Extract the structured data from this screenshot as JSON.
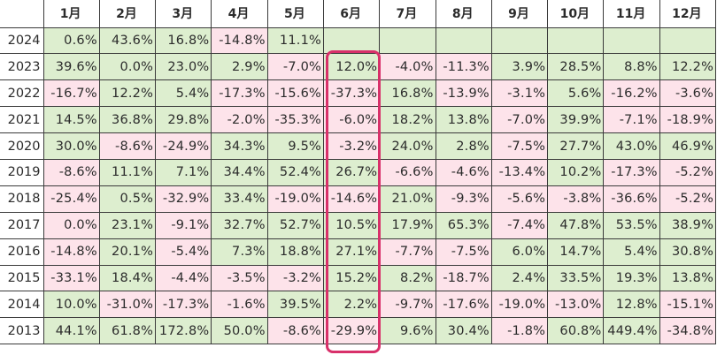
{
  "table": {
    "corner_label": "",
    "columns": [
      "1月",
      "2月",
      "3月",
      "4月",
      "5月",
      "6月",
      "7月",
      "8月",
      "9月",
      "10月",
      "11月",
      "12月"
    ],
    "rows": [
      {
        "year": "2024",
        "cells": [
          {
            "v": "0.6%",
            "s": "pos"
          },
          {
            "v": "43.6%",
            "s": "pos"
          },
          {
            "v": "16.8%",
            "s": "pos"
          },
          {
            "v": "-14.8%",
            "s": "neg"
          },
          {
            "v": "11.1%",
            "s": "pos"
          },
          {
            "v": "",
            "s": "empty"
          },
          {
            "v": "",
            "s": "empty"
          },
          {
            "v": "",
            "s": "empty"
          },
          {
            "v": "",
            "s": "empty"
          },
          {
            "v": "",
            "s": "empty"
          },
          {
            "v": "",
            "s": "empty"
          },
          {
            "v": "",
            "s": "empty"
          }
        ]
      },
      {
        "year": "2023",
        "cells": [
          {
            "v": "39.6%",
            "s": "pos"
          },
          {
            "v": "0.0%",
            "s": "pos"
          },
          {
            "v": "23.0%",
            "s": "pos"
          },
          {
            "v": "2.9%",
            "s": "pos"
          },
          {
            "v": "-7.0%",
            "s": "neg"
          },
          {
            "v": "12.0%",
            "s": "pos"
          },
          {
            "v": "-4.0%",
            "s": "neg"
          },
          {
            "v": "-11.3%",
            "s": "neg"
          },
          {
            "v": "3.9%",
            "s": "pos"
          },
          {
            "v": "28.5%",
            "s": "pos"
          },
          {
            "v": "8.8%",
            "s": "pos"
          },
          {
            "v": "12.2%",
            "s": "pos"
          }
        ]
      },
      {
        "year": "2022",
        "cells": [
          {
            "v": "-16.7%",
            "s": "neg"
          },
          {
            "v": "12.2%",
            "s": "pos"
          },
          {
            "v": "5.4%",
            "s": "pos"
          },
          {
            "v": "-17.3%",
            "s": "neg"
          },
          {
            "v": "-15.6%",
            "s": "neg"
          },
          {
            "v": "-37.3%",
            "s": "neg"
          },
          {
            "v": "16.8%",
            "s": "pos"
          },
          {
            "v": "-13.9%",
            "s": "neg"
          },
          {
            "v": "-3.1%",
            "s": "neg"
          },
          {
            "v": "5.6%",
            "s": "pos"
          },
          {
            "v": "-16.2%",
            "s": "neg"
          },
          {
            "v": "-3.6%",
            "s": "neg"
          }
        ]
      },
      {
        "year": "2021",
        "cells": [
          {
            "v": "14.5%",
            "s": "pos"
          },
          {
            "v": "36.8%",
            "s": "pos"
          },
          {
            "v": "29.8%",
            "s": "pos"
          },
          {
            "v": "-2.0%",
            "s": "neg"
          },
          {
            "v": "-35.3%",
            "s": "neg"
          },
          {
            "v": "-6.0%",
            "s": "neg"
          },
          {
            "v": "18.2%",
            "s": "pos"
          },
          {
            "v": "13.8%",
            "s": "pos"
          },
          {
            "v": "-7.0%",
            "s": "neg"
          },
          {
            "v": "39.9%",
            "s": "pos"
          },
          {
            "v": "-7.1%",
            "s": "neg"
          },
          {
            "v": "-18.9%",
            "s": "neg"
          }
        ]
      },
      {
        "year": "2020",
        "cells": [
          {
            "v": "30.0%",
            "s": "pos"
          },
          {
            "v": "-8.6%",
            "s": "neg"
          },
          {
            "v": "-24.9%",
            "s": "neg"
          },
          {
            "v": "34.3%",
            "s": "pos"
          },
          {
            "v": "9.5%",
            "s": "pos"
          },
          {
            "v": "-3.2%",
            "s": "neg"
          },
          {
            "v": "24.0%",
            "s": "pos"
          },
          {
            "v": "2.8%",
            "s": "pos"
          },
          {
            "v": "-7.5%",
            "s": "neg"
          },
          {
            "v": "27.7%",
            "s": "pos"
          },
          {
            "v": "43.0%",
            "s": "pos"
          },
          {
            "v": "46.9%",
            "s": "pos"
          }
        ]
      },
      {
        "year": "2019",
        "cells": [
          {
            "v": "-8.6%",
            "s": "neg"
          },
          {
            "v": "11.1%",
            "s": "pos"
          },
          {
            "v": "7.1%",
            "s": "pos"
          },
          {
            "v": "34.4%",
            "s": "pos"
          },
          {
            "v": "52.4%",
            "s": "pos"
          },
          {
            "v": "26.7%",
            "s": "pos"
          },
          {
            "v": "-6.6%",
            "s": "neg"
          },
          {
            "v": "-4.6%",
            "s": "neg"
          },
          {
            "v": "-13.4%",
            "s": "neg"
          },
          {
            "v": "10.2%",
            "s": "pos"
          },
          {
            "v": "-17.3%",
            "s": "neg"
          },
          {
            "v": "-5.2%",
            "s": "neg"
          }
        ]
      },
      {
        "year": "2018",
        "cells": [
          {
            "v": "-25.4%",
            "s": "neg"
          },
          {
            "v": "0.5%",
            "s": "pos"
          },
          {
            "v": "-32.9%",
            "s": "neg"
          },
          {
            "v": "33.4%",
            "s": "pos"
          },
          {
            "v": "-19.0%",
            "s": "neg"
          },
          {
            "v": "-14.6%",
            "s": "neg"
          },
          {
            "v": "21.0%",
            "s": "pos"
          },
          {
            "v": "-9.3%",
            "s": "neg"
          },
          {
            "v": "-5.6%",
            "s": "neg"
          },
          {
            "v": "-3.8%",
            "s": "neg"
          },
          {
            "v": "-36.6%",
            "s": "neg"
          },
          {
            "v": "-5.2%",
            "s": "neg"
          }
        ]
      },
      {
        "year": "2017",
        "cells": [
          {
            "v": "0.0%",
            "s": "neg"
          },
          {
            "v": "23.1%",
            "s": "pos"
          },
          {
            "v": "-9.1%",
            "s": "neg"
          },
          {
            "v": "32.7%",
            "s": "pos"
          },
          {
            "v": "52.7%",
            "s": "pos"
          },
          {
            "v": "10.5%",
            "s": "pos"
          },
          {
            "v": "17.9%",
            "s": "pos"
          },
          {
            "v": "65.3%",
            "s": "pos"
          },
          {
            "v": "-7.4%",
            "s": "neg"
          },
          {
            "v": "47.8%",
            "s": "pos"
          },
          {
            "v": "53.5%",
            "s": "pos"
          },
          {
            "v": "38.9%",
            "s": "pos"
          }
        ]
      },
      {
        "year": "2016",
        "cells": [
          {
            "v": "-14.8%",
            "s": "neg"
          },
          {
            "v": "20.1%",
            "s": "pos"
          },
          {
            "v": "-5.4%",
            "s": "neg"
          },
          {
            "v": "7.3%",
            "s": "pos"
          },
          {
            "v": "18.8%",
            "s": "pos"
          },
          {
            "v": "27.1%",
            "s": "pos"
          },
          {
            "v": "-7.7%",
            "s": "neg"
          },
          {
            "v": "-7.5%",
            "s": "neg"
          },
          {
            "v": "6.0%",
            "s": "pos"
          },
          {
            "v": "14.7%",
            "s": "pos"
          },
          {
            "v": "5.4%",
            "s": "pos"
          },
          {
            "v": "30.8%",
            "s": "pos"
          }
        ]
      },
      {
        "year": "2015",
        "cells": [
          {
            "v": "-33.1%",
            "s": "neg"
          },
          {
            "v": "18.4%",
            "s": "pos"
          },
          {
            "v": "-4.4%",
            "s": "neg"
          },
          {
            "v": "-3.5%",
            "s": "neg"
          },
          {
            "v": "-3.2%",
            "s": "neg"
          },
          {
            "v": "15.2%",
            "s": "pos"
          },
          {
            "v": "8.2%",
            "s": "pos"
          },
          {
            "v": "-18.7%",
            "s": "neg"
          },
          {
            "v": "2.4%",
            "s": "pos"
          },
          {
            "v": "33.5%",
            "s": "pos"
          },
          {
            "v": "19.3%",
            "s": "pos"
          },
          {
            "v": "13.8%",
            "s": "pos"
          }
        ]
      },
      {
        "year": "2014",
        "cells": [
          {
            "v": "10.0%",
            "s": "pos"
          },
          {
            "v": "-31.0%",
            "s": "neg"
          },
          {
            "v": "-17.3%",
            "s": "neg"
          },
          {
            "v": "-1.6%",
            "s": "neg"
          },
          {
            "v": "39.5%",
            "s": "pos"
          },
          {
            "v": "2.2%",
            "s": "pos"
          },
          {
            "v": "-9.7%",
            "s": "neg"
          },
          {
            "v": "-17.6%",
            "s": "neg"
          },
          {
            "v": "-19.0%",
            "s": "neg"
          },
          {
            "v": "-13.0%",
            "s": "neg"
          },
          {
            "v": "12.8%",
            "s": "pos"
          },
          {
            "v": "-15.1%",
            "s": "neg"
          }
        ]
      },
      {
        "year": "2013",
        "cells": [
          {
            "v": "44.1%",
            "s": "pos"
          },
          {
            "v": "61.8%",
            "s": "pos"
          },
          {
            "v": "172.8%",
            "s": "pos"
          },
          {
            "v": "50.0%",
            "s": "pos"
          },
          {
            "v": "-8.6%",
            "s": "neg"
          },
          {
            "v": "-29.9%",
            "s": "neg"
          },
          {
            "v": "9.6%",
            "s": "pos"
          },
          {
            "v": "30.4%",
            "s": "pos"
          },
          {
            "v": "-1.8%",
            "s": "neg"
          },
          {
            "v": "60.8%",
            "s": "pos"
          },
          {
            "v": "449.4%",
            "s": "pos"
          },
          {
            "v": "-34.8%",
            "s": "neg"
          }
        ]
      }
    ]
  },
  "highlight": {
    "column": "6月",
    "rows_from": "2023",
    "rows_to": "2013",
    "color": "#d8306a"
  },
  "colors": {
    "positive_fill": "#ddeecf",
    "negative_fill": "#fde3ea",
    "border": "#3a3a3a",
    "text": "#2b2b2b"
  }
}
